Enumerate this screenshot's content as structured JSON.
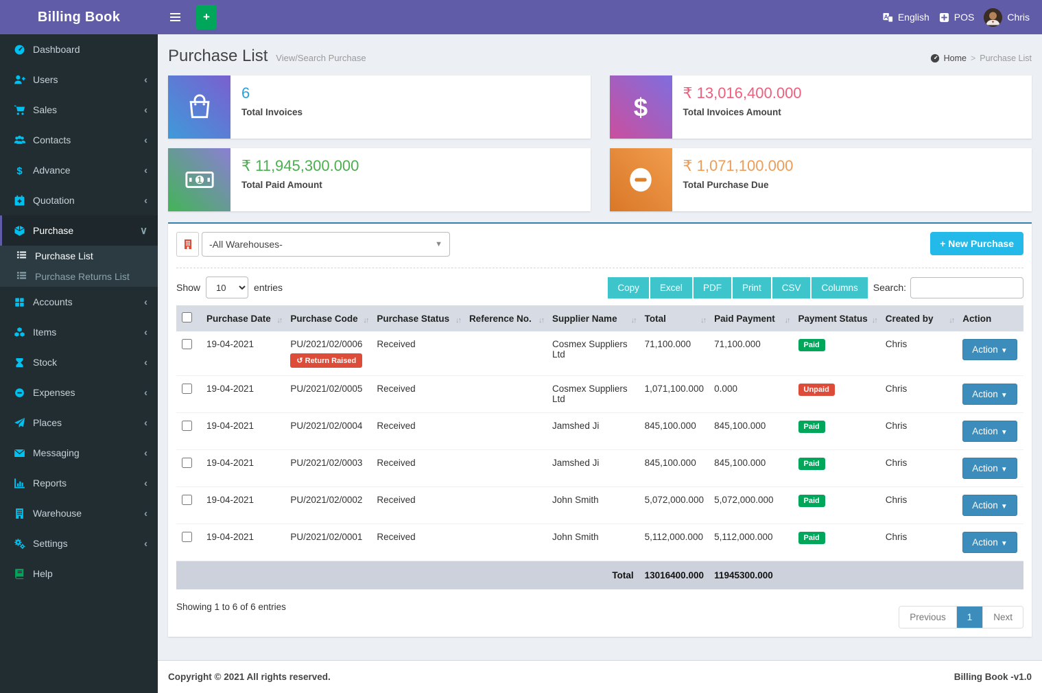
{
  "app": {
    "title": "Billing Book",
    "version": "Billing Book -v1.0",
    "copyright": "Copyright © 2021 All rights reserved."
  },
  "colors": {
    "accent_purple": "#605ca8",
    "sidebar_dark": "#222d32",
    "icon_cyan": "#00c0ef",
    "teal_button": "#3dc5cb",
    "primary_blue": "#3c8dbc",
    "success_green": "#00a65a",
    "danger_red": "#dd4b39",
    "info_cyan": "#23b9e8",
    "card_blue": "#2d9fd8",
    "card_pink": "#ee5e7d",
    "card_green": "#4cae50",
    "card_orange": "#ee9c57"
  },
  "topbar": {
    "language": "English",
    "pos": "POS",
    "user": "Chris"
  },
  "sidebar": {
    "items": [
      {
        "label": "Dashboard",
        "icon": "dashboard-icon"
      },
      {
        "label": "Users",
        "icon": "user-plus-icon",
        "chevron": "left"
      },
      {
        "label": "Sales",
        "icon": "cart-icon",
        "chevron": "left"
      },
      {
        "label": "Contacts",
        "icon": "contacts-icon",
        "chevron": "left"
      },
      {
        "label": "Advance",
        "icon": "dollar-icon",
        "chevron": "left"
      },
      {
        "label": "Quotation",
        "icon": "calendar-plus-icon",
        "chevron": "left"
      },
      {
        "label": "Purchase",
        "icon": "cube-icon",
        "chevron": "down",
        "active": true,
        "children": [
          {
            "label": "Purchase List",
            "icon": "list-icon",
            "active": true
          },
          {
            "label": "Purchase Returns List",
            "icon": "list-icon"
          }
        ]
      },
      {
        "label": "Accounts",
        "icon": "grid-icon",
        "chevron": "left"
      },
      {
        "label": "Items",
        "icon": "cubes-icon",
        "chevron": "left"
      },
      {
        "label": "Stock",
        "icon": "hourglass-icon",
        "chevron": "left"
      },
      {
        "label": "Expenses",
        "icon": "minus-circle-icon",
        "chevron": "left"
      },
      {
        "label": "Places",
        "icon": "paper-plane-icon",
        "chevron": "left"
      },
      {
        "label": "Messaging",
        "icon": "envelope-icon",
        "chevron": "left"
      },
      {
        "label": "Reports",
        "icon": "bar-chart-icon",
        "chevron": "left"
      },
      {
        "label": "Warehouse",
        "icon": "building-icon",
        "chevron": "left"
      },
      {
        "label": "Settings",
        "icon": "gears-icon",
        "chevron": "left"
      },
      {
        "label": "Help",
        "icon": "book-icon",
        "green": true
      }
    ]
  },
  "page": {
    "title": "Purchase List",
    "subtitle": "View/Search Purchase",
    "breadcrumb": {
      "home": "Home",
      "current": "Purchase List"
    }
  },
  "cards": [
    {
      "value": "6",
      "label": "Total Invoices",
      "icon": "shopping-bag-icon"
    },
    {
      "value": "₹ 13,016,400.000",
      "label": "Total Invoices Amount",
      "icon": "dollar-icon"
    },
    {
      "value": "₹ 11,945,300.000",
      "label": "Total Paid Amount",
      "icon": "money-bill-icon"
    },
    {
      "value": "₹ 1,071,100.000",
      "label": "Total Purchase Due",
      "icon": "minus-circle-icon"
    }
  ],
  "toolbar": {
    "warehouse_filter": "-All Warehouses-",
    "new_purchase_label": "New Purchase"
  },
  "datatable": {
    "show_label": "Show",
    "page_size": "10",
    "entries_label": "entries",
    "export_buttons": [
      "Copy",
      "Excel",
      "PDF",
      "Print",
      "CSV",
      "Columns"
    ],
    "search_label": "Search:",
    "columns": [
      "Purchase Date",
      "Purchase Code",
      "Purchase Status",
      "Reference No.",
      "Supplier Name",
      "Total",
      "Paid Payment",
      "Payment Status",
      "Created by",
      "Action"
    ],
    "return_badge": "Return Raised",
    "action_label": "Action",
    "rows": [
      {
        "date": "19-04-2021",
        "code": "PU/2021/02/0006",
        "return_raised": true,
        "status": "Received",
        "reference": "",
        "supplier": "Cosmex Suppliers Ltd",
        "total": "71,100.000",
        "paid": "71,100.000",
        "payment_status": "Paid",
        "created_by": "Chris"
      },
      {
        "date": "19-04-2021",
        "code": "PU/2021/02/0005",
        "return_raised": false,
        "status": "Received",
        "reference": "",
        "supplier": "Cosmex Suppliers Ltd",
        "total": "1,071,100.000",
        "paid": "0.000",
        "payment_status": "Unpaid",
        "created_by": "Chris"
      },
      {
        "date": "19-04-2021",
        "code": "PU/2021/02/0004",
        "return_raised": false,
        "status": "Received",
        "reference": "",
        "supplier": "Jamshed Ji",
        "total": "845,100.000",
        "paid": "845,100.000",
        "payment_status": "Paid",
        "created_by": "Chris"
      },
      {
        "date": "19-04-2021",
        "code": "PU/2021/02/0003",
        "return_raised": false,
        "status": "Received",
        "reference": "",
        "supplier": "Jamshed Ji",
        "total": "845,100.000",
        "paid": "845,100.000",
        "payment_status": "Paid",
        "created_by": "Chris"
      },
      {
        "date": "19-04-2021",
        "code": "PU/2021/02/0002",
        "return_raised": false,
        "status": "Received",
        "reference": "",
        "supplier": "John Smith",
        "total": "5,072,000.000",
        "paid": "5,072,000.000",
        "payment_status": "Paid",
        "created_by": "Chris"
      },
      {
        "date": "19-04-2021",
        "code": "PU/2021/02/0001",
        "return_raised": false,
        "status": "Received",
        "reference": "",
        "supplier": "John Smith",
        "total": "5,112,000.000",
        "paid": "5,112,000.000",
        "payment_status": "Paid",
        "created_by": "Chris"
      }
    ],
    "footer": {
      "total_label": "Total",
      "total": "13016400.000",
      "paid_total": "11945300.000"
    },
    "info": "Showing 1 to 6 of 6 entries",
    "pagination": {
      "previous": "Previous",
      "page": "1",
      "next": "Next"
    }
  }
}
